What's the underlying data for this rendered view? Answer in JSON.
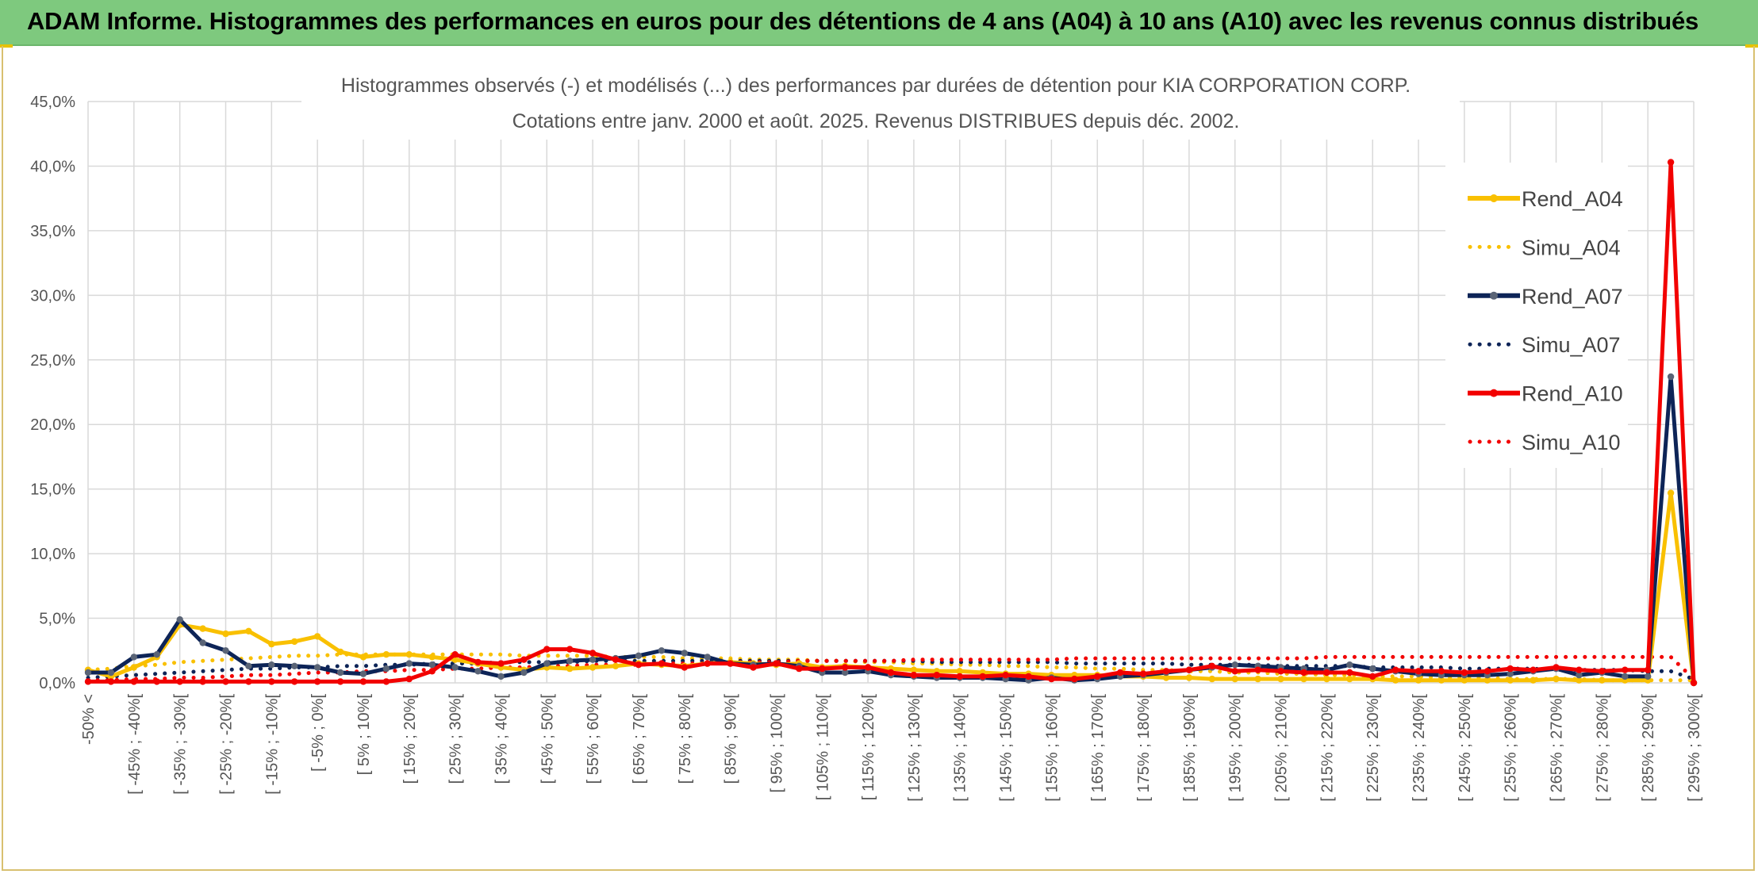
{
  "banner": {
    "title": "ADAM Informe. Histogrammes des performances en euros pour des détentions de 4 ans (A04) à 10 ans (A10) avec les revenus connus distribués"
  },
  "colors": {
    "A04": "#f9c000",
    "A07": "#0d2457",
    "A10": "#f20000",
    "banner": "#7ec97e",
    "grid": "#d9d9d9",
    "axis_text": "#555555"
  },
  "chart_data": {
    "type": "line",
    "title": [
      "Histogrammes observés (-) et modélisés (...) des performances par durées de détention pour KIA CORPORATION CORP.",
      "Cotations entre janv. 2000 et août. 2025. Revenus DISTRIBUES depuis déc. 2002."
    ],
    "xlabel": "",
    "ylabel": "",
    "ylim": [
      0,
      45
    ],
    "ytick_step": 5,
    "y_format": "percent_1dp_comma",
    "grid": true,
    "legend_position": "right",
    "categories": [
      "-50% <",
      "[ -50% ; -45%[",
      "[ -45% ; -40%[",
      "[ -40% ; -35%[",
      "[ -35% ; -30%[",
      "[ -30% ; -25%[",
      "[ -25% ; -20%[",
      "[ -20% ; -15%[",
      "[ -15% ; -10%[",
      "[ -10% ; -5%[",
      "[ -5% ; 0%[",
      "[ 0% ; 5%[",
      "[ 5% ; 10%[",
      "[ 10% ; 15%[",
      "[ 15% ; 20%[",
      "[ 20% ; 25%[",
      "[ 25% ; 30%[",
      "[ 30% ; 35%[",
      "[ 35% ; 40%[",
      "[ 40% ; 45%[",
      "[ 45% ; 50%[",
      "[ 50% ; 55%[",
      "[ 55% ; 60%[",
      "[ 60% ; 65%[",
      "[ 65% ; 70%[",
      "[ 70% ; 75%[",
      "[ 75% ; 80%[",
      "[ 80% ; 85%[",
      "[ 85% ; 90%[",
      "[ 90% ; 95%[",
      "[ 95% ; 100%[",
      "[ 100% ; 105%[",
      "[ 105% ; 110%[",
      "[ 110% ; 115%[",
      "[ 115% ; 120%[",
      "[ 120% ; 125%[",
      "[ 125% ; 130%[",
      "[ 130% ; 135%[",
      "[ 135% ; 140%[",
      "[ 140% ; 145%[",
      "[ 145% ; 150%[",
      "[ 150% ; 155%[",
      "[ 155% ; 160%[",
      "[ 160% ; 165%[",
      "[ 165% ; 170%[",
      "[ 170% ; 175%[",
      "[ 175% ; 180%[",
      "[ 180% ; 185%[",
      "[ 185% ; 190%[",
      "[ 190% ; 195%[",
      "[ 195% ; 200%[",
      "[ 200% ; 205%[",
      "[ 205% ; 210%[",
      "[ 210% ; 215%[",
      "[ 215% ; 220%[",
      "[ 220% ; 225%[",
      "[ 225% ; 230%[",
      "[ 230% ; 235%[",
      "[ 235% ; 240%[",
      "[ 240% ; 245%[",
      "[ 245% ; 250%[",
      "[ 250% ; 255%[",
      "[ 255% ; 260%[",
      "[ 260% ; 265%[",
      "[ 265% ; 270%[",
      "[ 270% ; 275%[",
      "[ 275% ; 280%[",
      "[ 280% ; 285%[",
      "[ 285% ; 290%[",
      "[ 290% ; 295%[",
      "[ 295% ; 300%["
    ],
    "label_every": 2,
    "series": [
      {
        "name": "Rend_A04",
        "key": "A04",
        "style": "solid",
        "values": [
          1.0,
          0.5,
          1.2,
          2.0,
          4.5,
          4.2,
          3.8,
          4.0,
          3.0,
          3.2,
          3.6,
          2.4,
          2.0,
          2.2,
          2.2,
          2.0,
          1.8,
          1.5,
          1.2,
          1.0,
          1.2,
          1.1,
          1.2,
          1.3,
          1.5,
          1.4,
          1.3,
          1.5,
          1.6,
          1.5,
          1.4,
          1.5,
          1.2,
          1.3,
          1.2,
          1.1,
          1.0,
          0.9,
          0.9,
          0.8,
          0.7,
          0.7,
          0.6,
          0.6,
          0.6,
          0.5,
          0.5,
          0.4,
          0.4,
          0.3,
          0.3,
          0.3,
          0.3,
          0.3,
          0.3,
          0.3,
          0.3,
          0.2,
          0.2,
          0.2,
          0.2,
          0.2,
          0.2,
          0.2,
          0.3,
          0.2,
          0.2,
          0.2,
          0.2,
          14.7,
          0.0
        ]
      },
      {
        "name": "Simu_A04",
        "key": "A04",
        "style": "dotted",
        "values": [
          1.0,
          1.1,
          1.3,
          1.4,
          1.6,
          1.7,
          1.8,
          1.9,
          2.0,
          2.1,
          2.1,
          2.2,
          2.2,
          2.2,
          2.2,
          2.2,
          2.2,
          2.2,
          2.2,
          2.1,
          2.1,
          2.1,
          2.1,
          2.0,
          2.0,
          2.0,
          1.9,
          1.9,
          1.9,
          1.8,
          1.8,
          1.8,
          1.7,
          1.7,
          1.6,
          1.6,
          1.5,
          1.5,
          1.4,
          1.4,
          1.3,
          1.3,
          1.2,
          1.2,
          1.1,
          1.1,
          1.0,
          1.0,
          0.9,
          0.9,
          0.8,
          0.8,
          0.7,
          0.7,
          0.6,
          0.6,
          0.5,
          0.5,
          0.5,
          0.4,
          0.4,
          0.4,
          0.3,
          0.3,
          0.3,
          0.3,
          0.2,
          0.2,
          0.2,
          0.2,
          0.2
        ]
      },
      {
        "name": "Rend_A07",
        "key": "A07",
        "style": "solid",
        "values": [
          0.8,
          0.8,
          2.0,
          2.2,
          4.9,
          3.1,
          2.5,
          1.3,
          1.4,
          1.3,
          1.2,
          0.8,
          0.7,
          1.1,
          1.5,
          1.4,
          1.2,
          0.9,
          0.5,
          0.8,
          1.5,
          1.7,
          1.8,
          1.9,
          2.1,
          2.5,
          2.3,
          2.0,
          1.5,
          1.4,
          1.5,
          1.3,
          0.8,
          0.8,
          0.9,
          0.6,
          0.5,
          0.4,
          0.4,
          0.4,
          0.3,
          0.2,
          0.4,
          0.2,
          0.3,
          0.5,
          0.6,
          0.8,
          1.0,
          1.2,
          1.4,
          1.3,
          1.2,
          1.1,
          1.0,
          1.4,
          1.1,
          0.9,
          0.7,
          0.6,
          0.6,
          0.6,
          0.7,
          0.9,
          1.1,
          0.6,
          0.8,
          0.5,
          0.5,
          23.7,
          0.0
        ]
      },
      {
        "name": "Simu_A07",
        "key": "A07",
        "style": "dotted",
        "values": [
          0.4,
          0.5,
          0.6,
          0.7,
          0.8,
          0.9,
          1.0,
          1.1,
          1.1,
          1.2,
          1.2,
          1.3,
          1.3,
          1.4,
          1.4,
          1.5,
          1.5,
          1.5,
          1.6,
          1.6,
          1.6,
          1.6,
          1.7,
          1.7,
          1.7,
          1.7,
          1.7,
          1.7,
          1.7,
          1.7,
          1.7,
          1.7,
          1.7,
          1.7,
          1.7,
          1.7,
          1.7,
          1.6,
          1.6,
          1.6,
          1.6,
          1.6,
          1.6,
          1.5,
          1.5,
          1.5,
          1.5,
          1.5,
          1.4,
          1.4,
          1.4,
          1.4,
          1.3,
          1.3,
          1.3,
          1.3,
          1.2,
          1.2,
          1.2,
          1.2,
          1.1,
          1.1,
          1.1,
          1.1,
          1.0,
          1.0,
          1.0,
          1.0,
          0.9,
          0.9,
          0.3
        ]
      },
      {
        "name": "Rend_A10",
        "key": "A10",
        "style": "solid",
        "values": [
          0.1,
          0.1,
          0.1,
          0.1,
          0.1,
          0.1,
          0.1,
          0.1,
          0.1,
          0.1,
          0.1,
          0.1,
          0.1,
          0.1,
          0.3,
          0.9,
          2.2,
          1.6,
          1.5,
          1.8,
          2.6,
          2.6,
          2.3,
          1.8,
          1.4,
          1.5,
          1.2,
          1.5,
          1.5,
          1.2,
          1.5,
          1.1,
          1.1,
          1.2,
          1.2,
          0.8,
          0.6,
          0.6,
          0.5,
          0.5,
          0.6,
          0.5,
          0.3,
          0.3,
          0.5,
          0.8,
          0.7,
          0.9,
          1.0,
          1.3,
          0.9,
          1.0,
          0.9,
          0.8,
          0.8,
          0.8,
          0.5,
          1.0,
          0.9,
          0.9,
          0.8,
          0.9,
          1.1,
          1.0,
          1.2,
          1.0,
          0.9,
          1.0,
          1.0,
          40.3,
          0.0
        ]
      },
      {
        "name": "Simu_A10",
        "key": "A10",
        "style": "dotted",
        "values": [
          0.2,
          0.2,
          0.3,
          0.3,
          0.4,
          0.4,
          0.5,
          0.6,
          0.6,
          0.7,
          0.8,
          0.8,
          0.9,
          0.9,
          1.0,
          1.0,
          1.1,
          1.1,
          1.2,
          1.2,
          1.3,
          1.3,
          1.4,
          1.4,
          1.4,
          1.5,
          1.5,
          1.5,
          1.6,
          1.6,
          1.6,
          1.7,
          1.7,
          1.7,
          1.7,
          1.7,
          1.8,
          1.8,
          1.8,
          1.8,
          1.8,
          1.8,
          1.8,
          1.9,
          1.9,
          1.9,
          1.9,
          1.9,
          1.9,
          1.9,
          1.9,
          1.9,
          1.9,
          1.9,
          2.0,
          2.0,
          2.0,
          2.0,
          2.0,
          2.0,
          2.0,
          2.0,
          2.0,
          2.0,
          2.0,
          2.0,
          2.0,
          2.0,
          2.0,
          2.0,
          0.3
        ]
      }
    ]
  }
}
